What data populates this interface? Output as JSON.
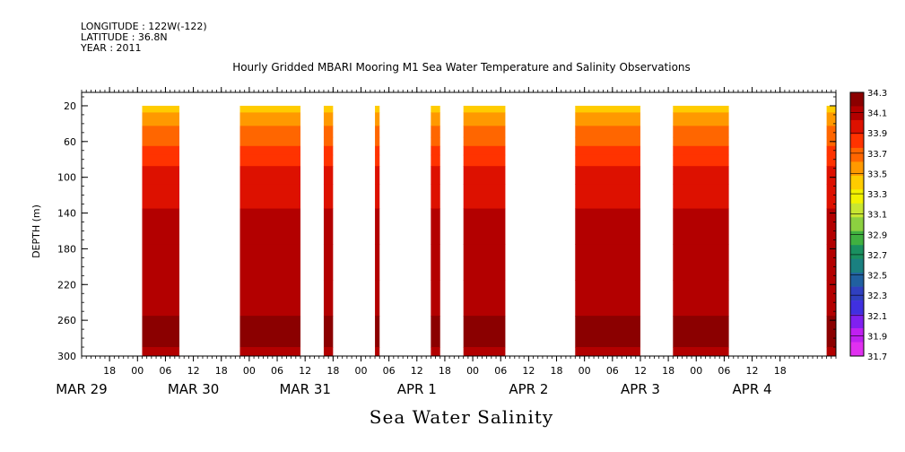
{
  "header": {
    "longitude": "LONGITUDE : 122W(-122)",
    "latitude": "LATITUDE : 36.8N",
    "year": "YEAR : 2011"
  },
  "chart_data": {
    "type": "heatmap",
    "title": "Hourly Gridded MBARI Mooring M1 Sea Water Temperature and Salinity Observations",
    "bottom_title": "Sea Water Salinity",
    "ylabel": "DEPTH (m)",
    "x_unit": "hours",
    "xlim": [
      "2011-03-29T12:00",
      "2011-04-05T06:00"
    ],
    "ylim": [
      300,
      5
    ],
    "y_ticks": [
      20,
      60,
      100,
      140,
      180,
      220,
      260,
      300
    ],
    "x_hour_labels": [
      "18",
      "00",
      "06",
      "12",
      "18",
      "00",
      "06",
      "12",
      "18",
      "00",
      "06",
      "12",
      "18",
      "00",
      "06",
      "12",
      "18",
      "00",
      "06",
      "12",
      "18",
      "00",
      "06",
      "12",
      "18"
    ],
    "x_hour_positions": [
      "2011-03-29T18:00",
      "2011-03-30T00:00",
      "2011-03-30T06:00",
      "2011-03-30T12:00",
      "2011-03-30T18:00",
      "2011-03-31T00:00",
      "2011-03-31T06:00",
      "2011-03-31T12:00",
      "2011-03-31T18:00",
      "2011-04-01T00:00",
      "2011-04-01T06:00",
      "2011-04-01T12:00",
      "2011-04-01T18:00",
      "2011-04-02T00:00",
      "2011-04-02T06:00",
      "2011-04-02T12:00",
      "2011-04-02T18:00",
      "2011-04-03T00:00",
      "2011-04-03T06:00",
      "2011-04-03T12:00",
      "2011-04-03T18:00",
      "2011-04-04T00:00",
      "2011-04-04T06:00",
      "2011-04-04T12:00",
      "2011-04-04T18:00"
    ],
    "x_day_labels": [
      "MAR 29",
      "MAR 30",
      "MAR 31",
      "APR  1",
      "APR  2",
      "APR  3",
      "APR  4"
    ],
    "x_day_positions": [
      "2011-03-29T12:00",
      "2011-03-30T12:00",
      "2011-03-31T12:00",
      "2011-04-01T12:00",
      "2011-04-02T12:00",
      "2011-04-03T12:00",
      "2011-04-04T12:00"
    ],
    "colorbar": {
      "levels": [
        "34.3",
        "34.1",
        "33.9",
        "33.7",
        "33.5",
        "33.3",
        "33.1",
        "32.9",
        "32.7",
        "32.5",
        "32.3",
        "32.1",
        "31.9",
        "31.7"
      ],
      "colors": [
        "#8b0000",
        "#b30000",
        "#dd1100",
        "#ff3300",
        "#ff6600",
        "#ff9900",
        "#ffcc00",
        "#f2f200",
        "#c8e632",
        "#8cd040",
        "#40b040",
        "#1a9060",
        "#1a8080",
        "#2060a0",
        "#3040c0",
        "#4030e0",
        "#8020f0",
        "#c020f0",
        "#e030f0"
      ]
    },
    "profile": [
      {
        "depth": 20,
        "salinity": 33.1
      },
      {
        "depth": 35,
        "salinity": 33.3
      },
      {
        "depth": 50,
        "salinity": 33.5
      },
      {
        "depth": 60,
        "salinity": 33.6
      },
      {
        "depth": 70,
        "salinity": 33.7
      },
      {
        "depth": 80,
        "salinity": 33.8
      },
      {
        "depth": 95,
        "salinity": 33.9
      },
      {
        "depth": 120,
        "salinity": 34.0
      },
      {
        "depth": 150,
        "salinity": 34.1
      },
      {
        "depth": 200,
        "salinity": 34.15
      },
      {
        "depth": 230,
        "salinity": 34.25
      },
      {
        "depth": 280,
        "salinity": 34.3
      },
      {
        "depth": 300,
        "salinity": 34.2
      }
    ],
    "data_segments": [
      {
        "start": "2011-03-30T01:00",
        "end": "2011-03-30T09:00"
      },
      {
        "start": "2011-03-30T22:00",
        "end": "2011-03-31T11:00"
      },
      {
        "start": "2011-03-31T16:00",
        "end": "2011-03-31T18:00"
      },
      {
        "start": "2011-04-01T03:00",
        "end": "2011-04-01T04:00"
      },
      {
        "start": "2011-04-01T15:00",
        "end": "2011-04-01T17:00"
      },
      {
        "start": "2011-04-01T22:00",
        "end": "2011-04-02T07:00"
      },
      {
        "start": "2011-04-02T22:00",
        "end": "2011-04-03T12:00"
      },
      {
        "start": "2011-04-03T19:00",
        "end": "2011-04-04T07:00"
      },
      {
        "start": "2011-04-05T04:00",
        "end": "2011-04-05T06:00"
      }
    ]
  }
}
